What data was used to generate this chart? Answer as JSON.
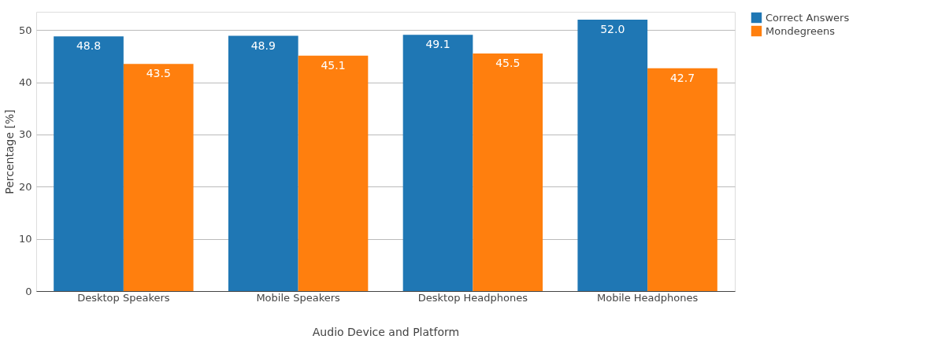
{
  "chart_data": {
    "type": "bar",
    "xlabel": "Audio Device and Platform",
    "ylabel": "Percentage [%]",
    "categories": [
      "Desktop Speakers",
      "Mobile Speakers",
      "Desktop Headphones",
      "Mobile Headphones"
    ],
    "series": [
      {
        "name": "Correct Answers",
        "color": "#1f77b4",
        "values": [
          48.8,
          48.9,
          49.1,
          52.0
        ]
      },
      {
        "name": "Mondegreens",
        "color": "#ff7f0e",
        "values": [
          43.5,
          45.1,
          45.5,
          42.7
        ]
      }
    ],
    "value_labels": [
      [
        "48.8",
        "48.9",
        "49.1",
        "52.0"
      ],
      [
        "43.5",
        "45.1",
        "45.5",
        "42.7"
      ]
    ],
    "ylim": [
      0,
      53.5
    ],
    "yticks": [
      0,
      10,
      20,
      30,
      40,
      50
    ],
    "grid": "y",
    "legend": "top right"
  }
}
